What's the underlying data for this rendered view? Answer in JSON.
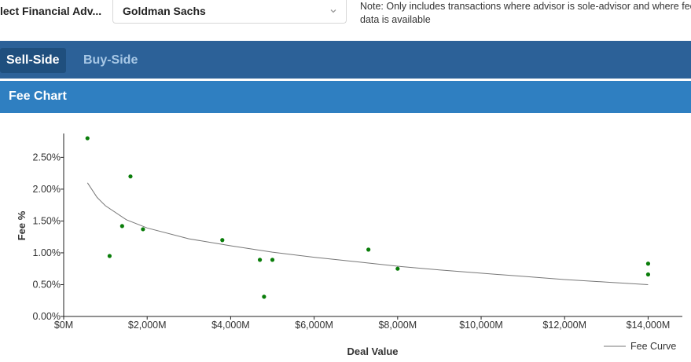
{
  "filter": {
    "label": "lect Financial Adv...",
    "selected_value": "Goldman Sachs",
    "note_line1": "Note: Only includes transactions where advisor is sole-advisor and where fee",
    "note_line2": "data is available"
  },
  "tabs": [
    {
      "label": "Sell-Side",
      "active": true
    },
    {
      "label": "Buy-Side",
      "active": false
    }
  ],
  "section": {
    "title": "Fee Chart"
  },
  "colors": {
    "tab_bar": "#2c6198",
    "active_tab": "#1f4f7e",
    "section_header": "#2f7fc1",
    "point": "#0a7d0a",
    "curve": "#777777"
  },
  "chart_data": {
    "type": "scatter",
    "xlabel": "Deal Value",
    "ylabel": "Fee %",
    "xlim": [
      0,
      14500
    ],
    "ylim": [
      0,
      2.85
    ],
    "x_ticks": [
      0,
      2000,
      4000,
      6000,
      8000,
      10000,
      12000,
      14000
    ],
    "x_tick_labels": [
      "$0M",
      "$2,000M",
      "$4,000M",
      "$6,000M",
      "$8,000M",
      "$10,000M",
      "$12,000M",
      "$14,000M"
    ],
    "y_ticks": [
      0,
      0.5,
      1.0,
      1.5,
      2.0,
      2.5
    ],
    "y_tick_labels": [
      "0.00%",
      "0.50%",
      "1.00%",
      "1.50%",
      "2.00%",
      "2.50%"
    ],
    "points": [
      {
        "x": 570,
        "y": 2.8
      },
      {
        "x": 1100,
        "y": 0.95
      },
      {
        "x": 1400,
        "y": 1.42
      },
      {
        "x": 1600,
        "y": 2.2
      },
      {
        "x": 1900,
        "y": 1.37
      },
      {
        "x": 3800,
        "y": 1.2
      },
      {
        "x": 4700,
        "y": 0.89
      },
      {
        "x": 4800,
        "y": 0.31
      },
      {
        "x": 5000,
        "y": 0.89
      },
      {
        "x": 7300,
        "y": 1.05
      },
      {
        "x": 8000,
        "y": 0.75
      },
      {
        "x": 14000,
        "y": 0.83
      },
      {
        "x": 14000,
        "y": 0.66
      }
    ],
    "series": [
      {
        "name": "Fee Curve",
        "type": "line",
        "x": [
          570,
          800,
          1000,
          1500,
          2000,
          3000,
          4000,
          5000,
          6000,
          7000,
          8000,
          9000,
          10000,
          11000,
          12000,
          13000,
          14000
        ],
        "y": [
          2.1,
          1.87,
          1.74,
          1.52,
          1.39,
          1.22,
          1.11,
          1.01,
          0.93,
          0.86,
          0.79,
          0.73,
          0.68,
          0.63,
          0.58,
          0.54,
          0.5
        ]
      }
    ],
    "grid": false,
    "legend_position": "bottom-right"
  }
}
